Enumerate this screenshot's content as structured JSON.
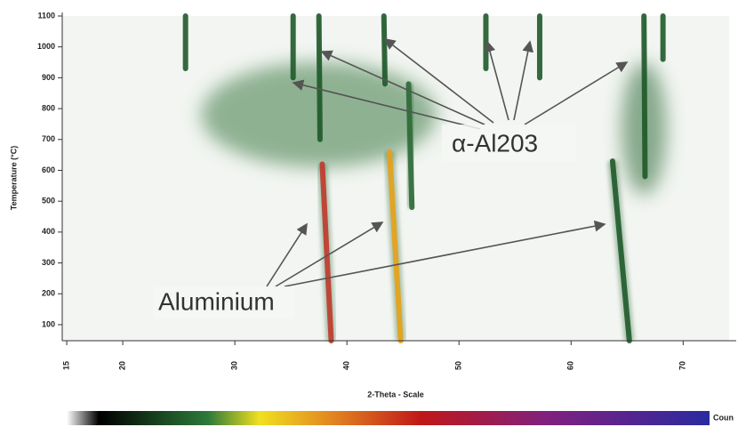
{
  "chart_data": {
    "type": "heatmap",
    "xlabel": "2-Theta - Scale",
    "ylabel": "Temperature (°C)",
    "xlim": [
      14.6,
      74.1
    ],
    "xticks": [
      15,
      20,
      30,
      40,
      50,
      60,
      70
    ],
    "ylim": [
      48,
      1100
    ],
    "yticks": [
      100,
      200,
      300,
      400,
      500,
      600,
      700,
      800,
      900,
      1000,
      1100
    ],
    "colorbar_label": "Coun",
    "background": "#f2f5f1",
    "diffuse_regions": [
      {
        "x": [
          27,
          48
        ],
        "y": [
          610,
          950
        ],
        "color": "#3d7a45"
      },
      {
        "x": [
          64.5,
          68.5
        ],
        "y": [
          520,
          950
        ],
        "color": "#2f6a38"
      }
    ],
    "streaks": [
      {
        "x": [
          25.6,
          25.6
        ],
        "y": [
          930,
          1100
        ],
        "color": "#1f5a2a"
      },
      {
        "x": [
          35.2,
          35.2
        ],
        "y": [
          900,
          1100
        ],
        "color": "#1f5a2a"
      },
      {
        "x": [
          37.6,
          37.5
        ],
        "y": [
          700,
          1100
        ],
        "color": "#1f5a2a"
      },
      {
        "x": [
          43.4,
          43.3
        ],
        "y": [
          880,
          1100
        ],
        "color": "#1f5a2a"
      },
      {
        "x": [
          45.8,
          45.5
        ],
        "y": [
          480,
          880
        ],
        "color": "#2f6a38"
      },
      {
        "x": [
          52.4,
          52.4
        ],
        "y": [
          930,
          1100
        ],
        "color": "#1f5a2a"
      },
      {
        "x": [
          57.2,
          57.2
        ],
        "y": [
          900,
          1100
        ],
        "color": "#1f5a2a"
      },
      {
        "x": [
          66.6,
          66.5
        ],
        "y": [
          580,
          1100
        ],
        "color": "#1f5a2a"
      },
      {
        "x": [
          68.2,
          68.2
        ],
        "y": [
          960,
          1100
        ],
        "color": "#1f5a2a"
      },
      {
        "x": [
          38.6,
          37.8
        ],
        "y": [
          48,
          620
        ],
        "color": "#c0392b"
      },
      {
        "x": [
          44.8,
          43.8
        ],
        "y": [
          48,
          660
        ],
        "color": "#e6a117"
      },
      {
        "x": [
          65.2,
          63.7
        ],
        "y": [
          48,
          630
        ],
        "color": "#1f5a2a"
      }
    ],
    "annotations": [
      "α-Al203",
      "Aluminium"
    ]
  }
}
